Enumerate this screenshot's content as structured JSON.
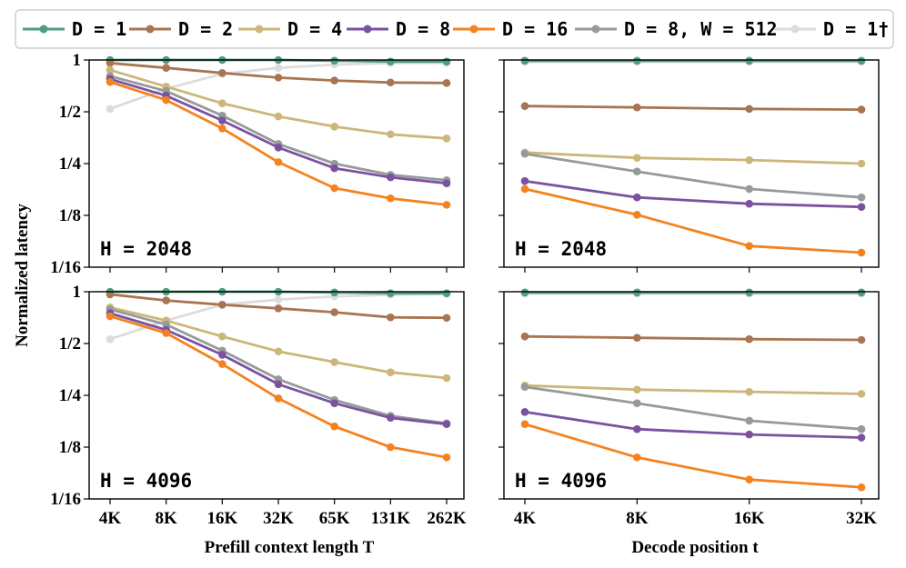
{
  "chart_data": {
    "type": "line",
    "ylabel": "Normalized latency",
    "y_scale": "log2",
    "ylim": [
      0.0625,
      1
    ],
    "y_ticks": [
      {
        "value": 1,
        "label": "1"
      },
      {
        "value": 0.5,
        "label": "1/2"
      },
      {
        "value": 0.25,
        "label": "1/4"
      },
      {
        "value": 0.125,
        "label": "1/8"
      },
      {
        "value": 0.0625,
        "label": "1/16"
      }
    ],
    "legend": [
      {
        "key": "d1",
        "label": "D = 1",
        "color": "#4c9e7c"
      },
      {
        "key": "d2",
        "label": "D = 2",
        "color": "#a87552"
      },
      {
        "key": "d4",
        "label": "D = 4",
        "color": "#cdb67a"
      },
      {
        "key": "d8",
        "label": "D = 8",
        "color": "#7a52a0"
      },
      {
        "key": "d16",
        "label": "D = 16",
        "color": "#f5821f"
      },
      {
        "key": "d8w",
        "label": "D = 8, W = 512",
        "color": "#979a9a"
      },
      {
        "key": "d1d",
        "label": "D = 1†",
        "color": "#dcdcdc"
      }
    ],
    "panels": [
      {
        "id": "prefill-2048",
        "annotation": "H = 2048",
        "xlabel": "Prefill context length T",
        "categories": [
          "4K",
          "8K",
          "16K",
          "32K",
          "65K",
          "131K",
          "262K"
        ],
        "series": [
          {
            "key": "d1d",
            "values": [
              0.52,
              0.68,
              0.83,
              0.9,
              0.94,
              0.96,
              0.96
            ]
          },
          {
            "key": "d1",
            "values": [
              1.0,
              1.0,
              1.0,
              1.0,
              0.99,
              0.98,
              0.98
            ]
          },
          {
            "key": "d2",
            "values": [
              0.96,
              0.9,
              0.84,
              0.79,
              0.76,
              0.74,
              0.735
            ]
          },
          {
            "key": "d4",
            "values": [
              0.875,
              0.7,
              0.56,
              0.47,
              0.41,
              0.37,
              0.35
            ]
          },
          {
            "key": "d8w",
            "values": [
              0.805,
              0.66,
              0.475,
              0.325,
              0.25,
              0.215,
              0.2
            ]
          },
          {
            "key": "d8",
            "values": [
              0.775,
              0.62,
              0.445,
              0.31,
              0.235,
              0.208,
              0.192
            ]
          },
          {
            "key": "d16",
            "values": [
              0.745,
              0.585,
              0.4,
              0.255,
              0.18,
              0.157,
              0.144
            ]
          }
        ]
      },
      {
        "id": "decode-2048",
        "annotation": "H = 2048",
        "xlabel": "Decode position t",
        "categories": [
          "4K",
          "8K",
          "16K",
          "32K"
        ],
        "series": [
          {
            "key": "d1d",
            "values": [
              0.975,
              0.975,
              0.975,
              0.975
            ]
          },
          {
            "key": "d1",
            "values": [
              0.99,
              0.99,
              0.99,
              0.99
            ]
          },
          {
            "key": "d2",
            "values": [
              0.54,
              0.53,
              0.52,
              0.515
            ]
          },
          {
            "key": "d4",
            "values": [
              0.29,
              0.27,
              0.262,
              0.25
            ]
          },
          {
            "key": "d8w",
            "values": [
              0.285,
              0.225,
              0.178,
              0.159
            ]
          },
          {
            "key": "d8",
            "values": [
              0.198,
              0.159,
              0.146,
              0.14
            ]
          },
          {
            "key": "d16",
            "values": [
              0.178,
              0.126,
              0.083,
              0.076
            ]
          }
        ]
      },
      {
        "id": "prefill-4096",
        "annotation": "H = 4096",
        "xlabel": "Prefill context length T",
        "categories": [
          "4K",
          "8K",
          "16K",
          "32K",
          "65K",
          "131K",
          "262K"
        ],
        "series": [
          {
            "key": "d1d",
            "values": [
              0.53,
              0.68,
              0.84,
              0.9,
              0.94,
              0.96,
              0.97
            ]
          },
          {
            "key": "d1",
            "values": [
              1.0,
              1.0,
              1.0,
              1.0,
              0.99,
              0.98,
              0.98
            ]
          },
          {
            "key": "d2",
            "values": [
              0.965,
              0.89,
              0.84,
              0.8,
              0.76,
              0.71,
              0.705
            ]
          },
          {
            "key": "d4",
            "values": [
              0.81,
              0.68,
              0.55,
              0.45,
              0.39,
              0.34,
              0.315
            ]
          },
          {
            "key": "d8w",
            "values": [
              0.79,
              0.645,
              0.455,
              0.31,
              0.235,
              0.19,
              0.172
            ]
          },
          {
            "key": "d8",
            "values": [
              0.75,
              0.6,
              0.43,
              0.29,
              0.225,
              0.185,
              0.17
            ]
          },
          {
            "key": "d16",
            "values": [
              0.72,
              0.575,
              0.38,
              0.24,
              0.165,
              0.125,
              0.109
            ]
          }
        ]
      },
      {
        "id": "decode-4096",
        "annotation": "H = 4096",
        "xlabel": "Decode position t",
        "categories": [
          "4K",
          "8K",
          "16K",
          "32K"
        ],
        "series": [
          {
            "key": "d1d",
            "values": [
              0.975,
              0.975,
              0.975,
              0.975
            ]
          },
          {
            "key": "d1",
            "values": [
              0.99,
              0.99,
              0.99,
              0.99
            ]
          },
          {
            "key": "d2",
            "values": [
              0.55,
              0.54,
              0.53,
              0.525
            ]
          },
          {
            "key": "d4",
            "values": [
              0.285,
              0.27,
              0.262,
              0.255
            ]
          },
          {
            "key": "d8w",
            "values": [
              0.28,
              0.225,
              0.178,
              0.159
            ]
          },
          {
            "key": "d8",
            "values": [
              0.2,
              0.159,
              0.148,
              0.142
            ]
          },
          {
            "key": "d16",
            "values": [
              0.17,
              0.109,
              0.081,
              0.073
            ]
          }
        ]
      }
    ]
  }
}
